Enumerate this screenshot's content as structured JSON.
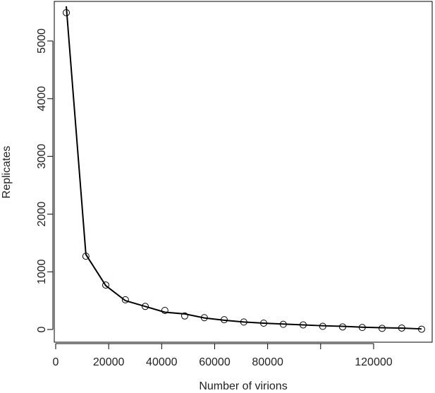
{
  "chart_data": {
    "type": "scatter-line",
    "xlabel": "Number of virions",
    "ylabel": "Replicates",
    "x": [
      4000,
      11400,
      18900,
      26300,
      33800,
      41200,
      48700,
      56100,
      63600,
      71000,
      78500,
      85900,
      93400,
      100800,
      108300,
      115700,
      123200,
      130600,
      138100
    ],
    "series": [
      {
        "kind": "points",
        "color": "#000000",
        "values": [
          5490,
          1270,
          770,
          515,
          400,
          330,
          235,
          205,
          170,
          130,
          110,
          90,
          80,
          55,
          45,
          35,
          20,
          25,
          5
        ]
      },
      {
        "kind": "line",
        "color": "#000000",
        "values": [
          5600,
          1300,
          760,
          500,
          400,
          300,
          270,
          200,
          160,
          130,
          110,
          95,
          80,
          65,
          55,
          40,
          30,
          25,
          10
        ]
      }
    ],
    "xlim": [
      -530,
      142100
    ],
    "ylim": [
      -220,
      5685
    ],
    "xticks": [
      0,
      20000,
      40000,
      60000,
      80000,
      {
        "value": 100000,
        "label": null
      },
      120000
    ],
    "yticks": [
      0,
      1000,
      2000,
      3000,
      4000,
      5000
    ]
  }
}
